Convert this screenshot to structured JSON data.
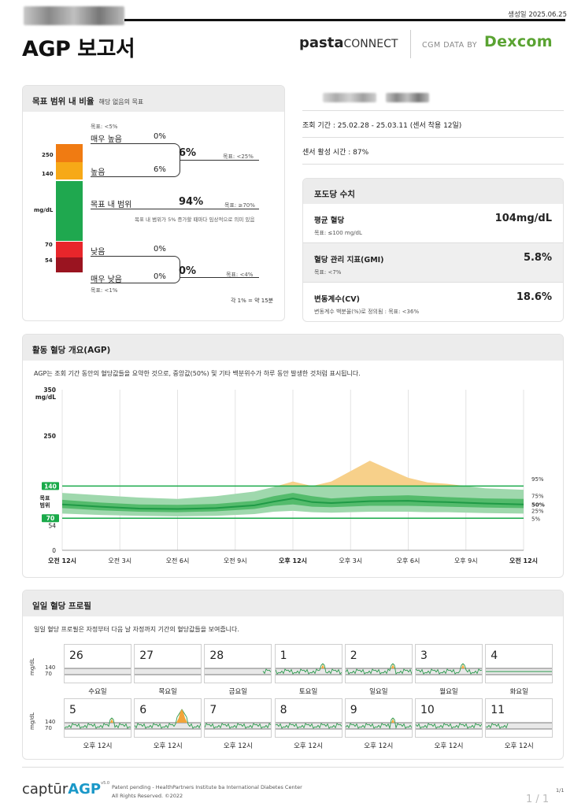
{
  "header": {
    "generated_date": "생성일 2025.06.25",
    "title": "AGP 보고서",
    "brand_left": "pasta",
    "brand_left_suffix": "CONNECT",
    "cgm_data_by": "CGM DATA BY",
    "dexcom": "Dexcom"
  },
  "tir": {
    "title": "목표 범위 내 비율",
    "subtitle": "해당 없음의 목표",
    "unit": "mg/dL",
    "thresholds": [
      "250",
      "140",
      "70",
      "54"
    ],
    "very_high": {
      "goal": "목표: <5%",
      "label": "매우 높음",
      "value": "0%"
    },
    "high": {
      "label": "높음",
      "value": "6%"
    },
    "combined_high": {
      "value": "6%",
      "goal": "목표: <25%"
    },
    "in_range": {
      "label": "목표 내 범위",
      "value": "94%",
      "goal": "목표: ≥70%",
      "note": "목표 내 범위가 5% 증가할 때마다 임상적으로 의미 있음"
    },
    "low": {
      "label": "낮음",
      "value": "0%"
    },
    "very_low": {
      "label": "매우 낮음",
      "value": "0%",
      "goal": "목표: <1%"
    },
    "combined_low": {
      "value": "0%",
      "goal": "목표: <4%"
    },
    "footnote": "각 1% = 약 15분"
  },
  "info": {
    "period": "조회 기간 : 25.02.28 - 25.03.11 (센서 착용 12일)",
    "sensor_active": "센서 활성 시간 : 87%"
  },
  "glucose": {
    "title": "포도당 수치",
    "rows": [
      {
        "label": "평균 혈당",
        "value": "104mg/dL",
        "goal": "목표: ≤100 mg/dL"
      },
      {
        "label": "혈당 관리 지표(GMI)",
        "value": "5.8%",
        "goal": "목표: <7%"
      },
      {
        "label": "변동계수(CV)",
        "value": "18.6%",
        "goal": "변동계수 백분율(%)로 정의됨 : 목표: <36%"
      }
    ]
  },
  "agp": {
    "title": "활동 혈당 개요(AGP)",
    "description": "AGP는 조회 기간 동안의 혈당값들을 요약한 것으로, 중앙값(50%) 및 기타 백분위수가 하루 동안 발생한 것처럼 표시됩니다.",
    "y_unit": "mg/dL",
    "target_label": [
      "목표",
      "범위"
    ],
    "target_high": "140",
    "target_low": "70",
    "percentile_labels": [
      "95%",
      "75%",
      "50%",
      "25%",
      "5%"
    ],
    "colors": {
      "target": "#1aaa4a",
      "high": "#f7d08a",
      "median": "#1f9a46"
    }
  },
  "chart_data": {
    "type": "area",
    "title": "활동 혈당 개요(AGP)",
    "ylabel": "mg/dL",
    "ylim": [
      0,
      350
    ],
    "yticks": [
      "350",
      "250",
      "140",
      "70",
      "54",
      "0"
    ],
    "x_ticks": [
      "오전 12시",
      "오전 3시",
      "오전 6시",
      "오전 9시",
      "오후 12시",
      "오후 3시",
      "오후 6시",
      "오후 9시",
      "오전 12시"
    ],
    "x_hours": [
      0,
      2,
      4,
      6,
      8,
      10,
      11,
      12,
      13,
      14,
      16,
      18,
      19,
      20,
      22,
      24
    ],
    "series": [
      {
        "name": "95%",
        "values": [
          125,
          120,
          115,
          112,
          118,
          128,
          138,
          150,
          140,
          150,
          195,
          158,
          148,
          145,
          135,
          132
        ]
      },
      {
        "name": "75%",
        "values": [
          110,
          104,
          100,
          99,
          101,
          108,
          118,
          125,
          118,
          113,
          118,
          120,
          118,
          116,
          113,
          112
        ]
      },
      {
        "name": "50%",
        "values": [
          100,
          95,
          91,
          90,
          92,
          98,
          106,
          113,
          105,
          103,
          107,
          108,
          106,
          105,
          102,
          100
        ]
      },
      {
        "name": "25%",
        "values": [
          92,
          87,
          84,
          83,
          85,
          90,
          97,
          100,
          95,
          94,
          97,
          97,
          96,
          95,
          93,
          92
        ]
      },
      {
        "name": "5%",
        "values": [
          80,
          77,
          75,
          74,
          75,
          79,
          84,
          86,
          83,
          82,
          84,
          84,
          83,
          83,
          81,
          80
        ]
      }
    ],
    "target_range": [
      70,
      140
    ],
    "grid": true
  },
  "daily": {
    "title": "일일 혈당 프로필",
    "description": "일일 혈당 프로필은 자정부터 다음 날 자정까지 기간의 혈당값들을 보여줍니다.",
    "unit": "mg/dL",
    "levels": [
      "140",
      "70"
    ],
    "week1": [
      {
        "day": "26",
        "label": "수요일",
        "has_data": false
      },
      {
        "day": "27",
        "label": "목요일",
        "has_data": false
      },
      {
        "day": "28",
        "label": "금요일",
        "has_data": "end"
      },
      {
        "day": "1",
        "label": "토요일",
        "has_data": true,
        "peak": "small"
      },
      {
        "day": "2",
        "label": "일요일",
        "has_data": true,
        "peak": "small"
      },
      {
        "day": "3",
        "label": "월요일",
        "has_data": true,
        "peak": "small"
      },
      {
        "day": "4",
        "label": "화요일",
        "has_data": true,
        "peak": "none"
      }
    ],
    "week2": [
      {
        "day": "5",
        "label": "오후 12시",
        "has_data": true,
        "peak": "small"
      },
      {
        "day": "6",
        "label": "오후 12시",
        "has_data": true,
        "peak": "big"
      },
      {
        "day": "7",
        "label": "오후 12시",
        "has_data": true,
        "peak": "none"
      },
      {
        "day": "8",
        "label": "오후 12시",
        "has_data": true,
        "peak": "none"
      },
      {
        "day": "9",
        "label": "오후 12시",
        "has_data": true,
        "peak": "small"
      },
      {
        "day": "10",
        "label": "오후 12시",
        "has_data": true,
        "peak": "none"
      },
      {
        "day": "11",
        "label": "오후 12시",
        "has_data": "start"
      }
    ]
  },
  "footer": {
    "logo_a": "captūr",
    "logo_b": "AGP",
    "logo_c": "v5.0",
    "patent": "Patent pending - HealthPartners Institute ba International Diabetes Center",
    "rights": "All Rights Reserved. ©2022",
    "page": "1/1",
    "page_big": "1 / 1"
  }
}
